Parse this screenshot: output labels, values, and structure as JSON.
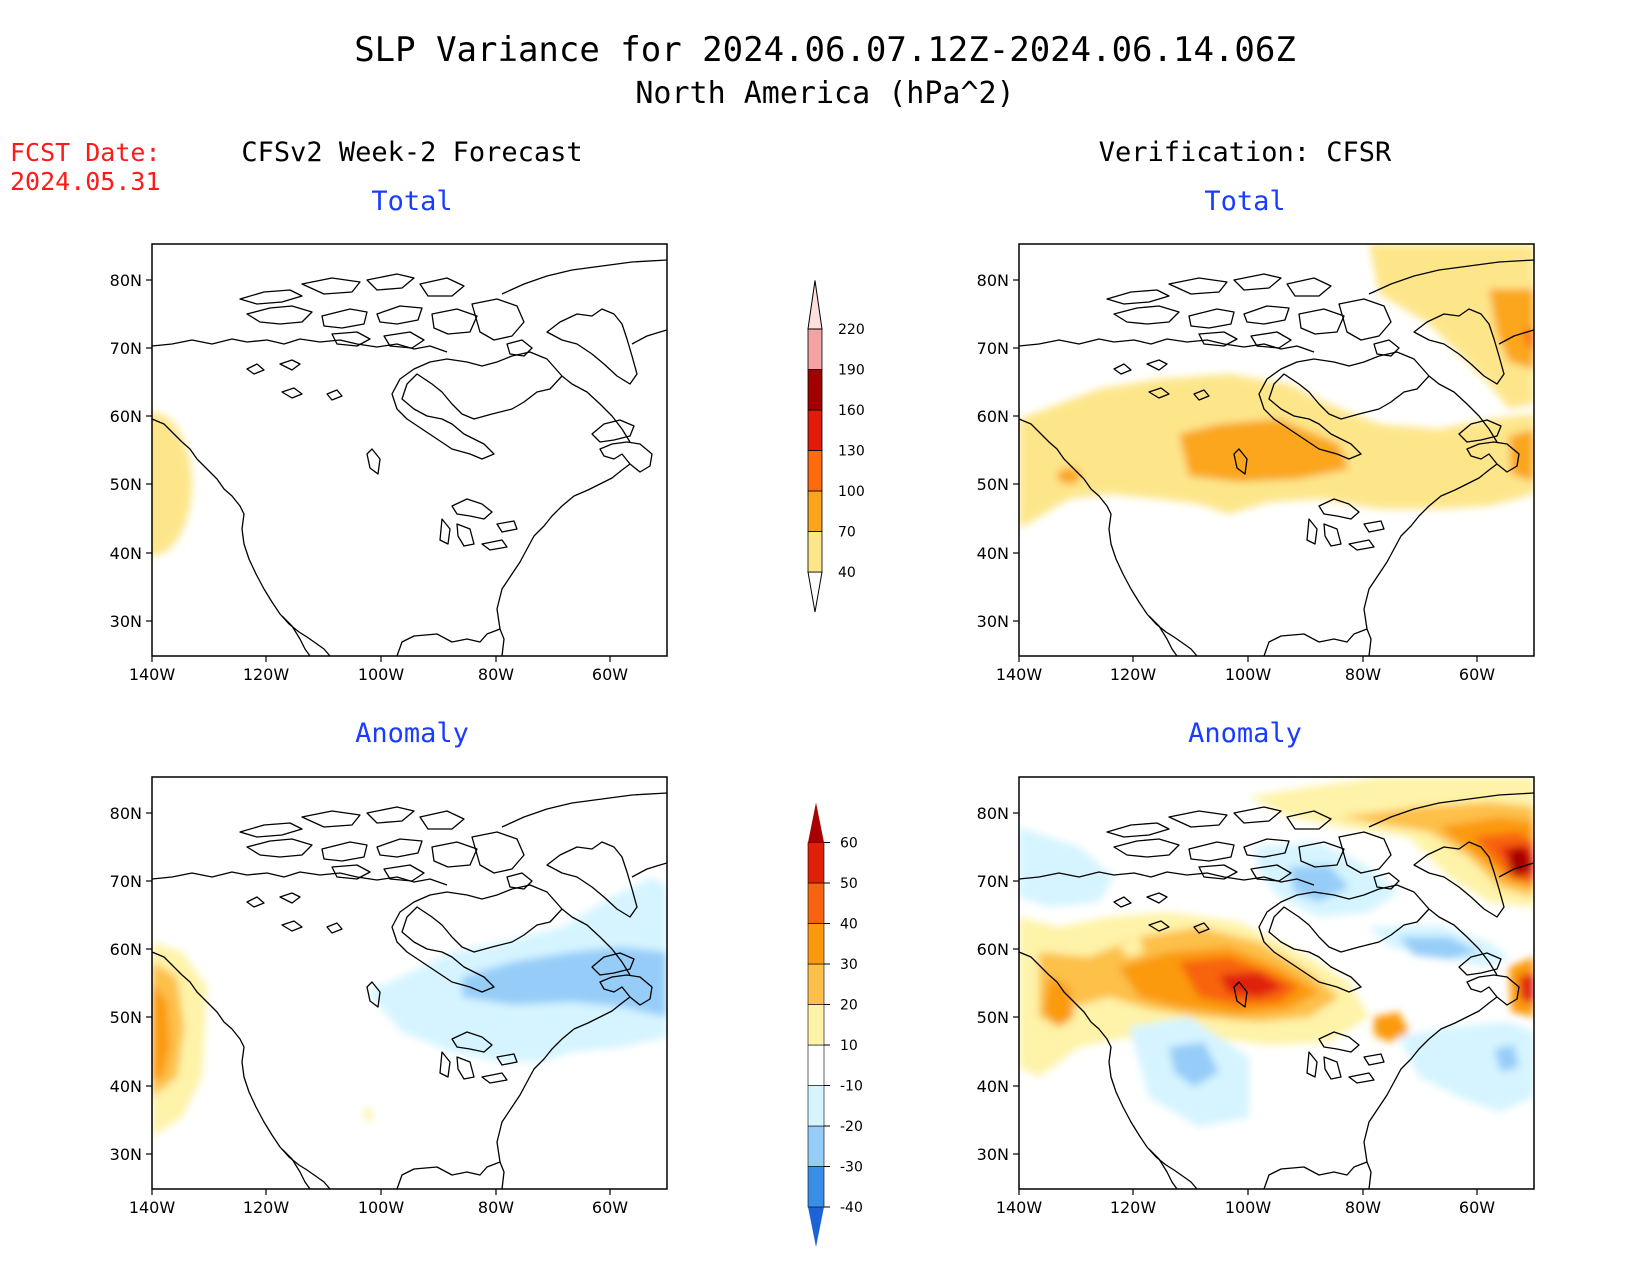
{
  "header": {
    "title": "SLP Variance for 2024.06.07.12Z-2024.06.14.06Z",
    "subtitle": "North America (hPa^2)"
  },
  "forecast_date": {
    "label": "FCST Date:",
    "value": "2024.05.31"
  },
  "columns": {
    "left": "CFSv2 Week-2 Forecast",
    "right": "Verification: CFSR"
  },
  "panels": {
    "fcst_total": "Total",
    "fcst_anom": "Anomaly",
    "ver_total": "Total",
    "ver_anom": "Anomaly"
  },
  "axes": {
    "lat_ticks": [
      "80N",
      "70N",
      "60N",
      "50N",
      "40N",
      "30N"
    ],
    "lon_ticks": [
      "140W",
      "120W",
      "100W",
      "80W",
      "60W"
    ]
  },
  "colorbar_total": {
    "labels": [
      "40",
      "70",
      "100",
      "130",
      "160",
      "190",
      "220"
    ],
    "colors": [
      "#fde68a",
      "#fba61a",
      "#fd6b0c",
      "#e21a08",
      "#a00000",
      "#f4a3a3",
      "#fde0dd"
    ]
  },
  "colorbar_anomaly": {
    "labels": [
      "-40",
      "-30",
      "-20",
      "-10",
      "10",
      "20",
      "30",
      "40",
      "50",
      "60"
    ],
    "colors": [
      "#1c63d8",
      "#3a8ee8",
      "#96cdf8",
      "#d5f4ff",
      "#ffffff",
      "#fef3a8",
      "#fdc04a",
      "#fb9a10",
      "#f86310",
      "#e02008",
      "#a80000"
    ]
  }
}
